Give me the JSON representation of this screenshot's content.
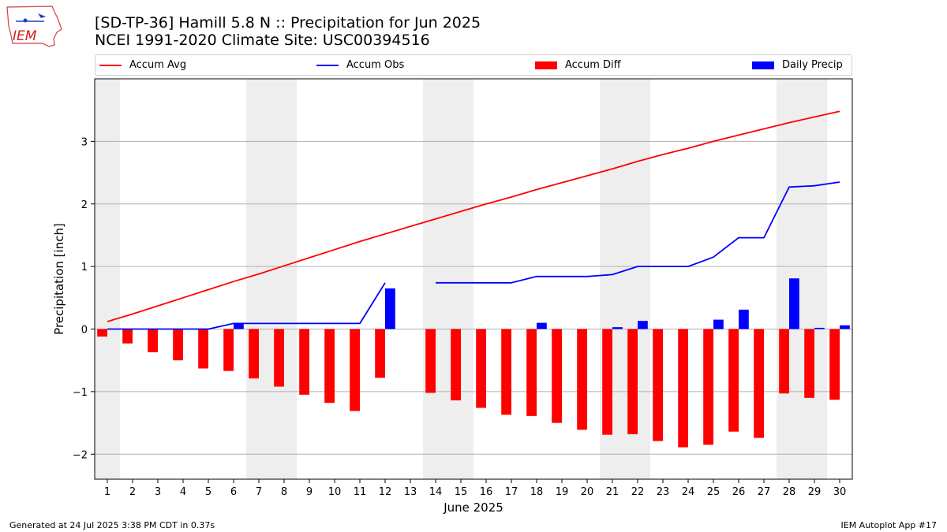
{
  "header": {
    "title_line1": "[SD-TP-36] Hamill 5.8 N :: Precipitation for Jun 2025",
    "title_line2": "NCEI 1991-2020 Climate Site: USC00394516"
  },
  "logo": {
    "text": "IEM"
  },
  "legend": {
    "accum_avg": "Accum Avg",
    "accum_obs": "Accum Obs",
    "accum_diff": "Accum Diff",
    "daily_precip": "Daily Precip"
  },
  "footer": {
    "generated": "Generated at 24 Jul 2025 3:38 PM CDT in 0.37s",
    "app": "IEM Autoplot App #17"
  },
  "colors": {
    "accum_avg": "#ff0000",
    "accum_obs": "#0000ff",
    "accum_diff": "#ff0000",
    "daily_precip": "#0000ff",
    "weekend_shade": "#eeeeee",
    "grid": "#b0b0b0"
  },
  "chart_data": {
    "type": "bar",
    "xlabel": "June 2025",
    "ylabel": "Precipitation [inch]",
    "ylim": [
      -2.4,
      4.0
    ],
    "yticks": [
      -2,
      -1,
      0,
      1,
      2,
      3
    ],
    "ytick_labels": [
      "−2",
      "−1",
      "0",
      "1",
      "2",
      "3"
    ],
    "grid": true,
    "legend_position": "top",
    "x": [
      1,
      2,
      3,
      4,
      5,
      6,
      7,
      8,
      9,
      10,
      11,
      12,
      13,
      14,
      15,
      16,
      17,
      18,
      19,
      20,
      21,
      22,
      23,
      24,
      25,
      26,
      27,
      28,
      29,
      30
    ],
    "shaded_days": [
      [
        0.5,
        1.5
      ],
      [
        6.5,
        8.5
      ],
      [
        13.5,
        15.5
      ],
      [
        20.5,
        22.5
      ],
      [
        27.5,
        29.5
      ]
    ],
    "series": [
      {
        "name": "Accum Avg",
        "type": "line",
        "values": [
          0.12,
          0.24,
          0.37,
          0.5,
          0.63,
          0.76,
          0.88,
          1.01,
          1.14,
          1.27,
          1.4,
          1.52,
          1.64,
          1.76,
          1.88,
          2.0,
          2.11,
          2.23,
          2.34,
          2.45,
          2.56,
          2.68,
          2.79,
          2.89,
          3.0,
          3.1,
          3.2,
          3.3,
          3.39,
          3.48
        ]
      },
      {
        "name": "Accum Obs",
        "type": "line",
        "values": [
          0.0,
          0.0,
          0.0,
          0.0,
          0.0,
          0.09,
          0.09,
          0.09,
          0.09,
          0.09,
          0.09,
          0.74,
          null,
          0.74,
          0.74,
          0.74,
          0.74,
          0.84,
          0.84,
          0.84,
          0.87,
          1.0,
          1.0,
          1.0,
          1.15,
          1.46,
          1.46,
          2.27,
          2.29,
          2.35
        ]
      },
      {
        "name": "Accum Diff",
        "type": "bar",
        "values": [
          -0.12,
          -0.23,
          -0.37,
          -0.5,
          -0.63,
          -0.67,
          -0.79,
          -0.92,
          -1.05,
          -1.18,
          -1.31,
          -0.78,
          null,
          -1.02,
          -1.14,
          -1.26,
          -1.37,
          -1.39,
          -1.5,
          -1.61,
          -1.69,
          -1.68,
          -1.79,
          -1.89,
          -1.85,
          -1.64,
          -1.74,
          -1.03,
          -1.1,
          -1.13
        ]
      },
      {
        "name": "Daily Precip",
        "type": "bar",
        "values": [
          0.0,
          0.0,
          0.0,
          0.0,
          0.0,
          0.09,
          0.0,
          0.0,
          0.0,
          0.0,
          0.0,
          0.65,
          null,
          0.0,
          0.0,
          0.0,
          0.0,
          0.1,
          0.0,
          0.0,
          0.03,
          0.13,
          0.0,
          0.0,
          0.15,
          0.31,
          0.0,
          0.81,
          0.02,
          0.06
        ]
      }
    ]
  }
}
